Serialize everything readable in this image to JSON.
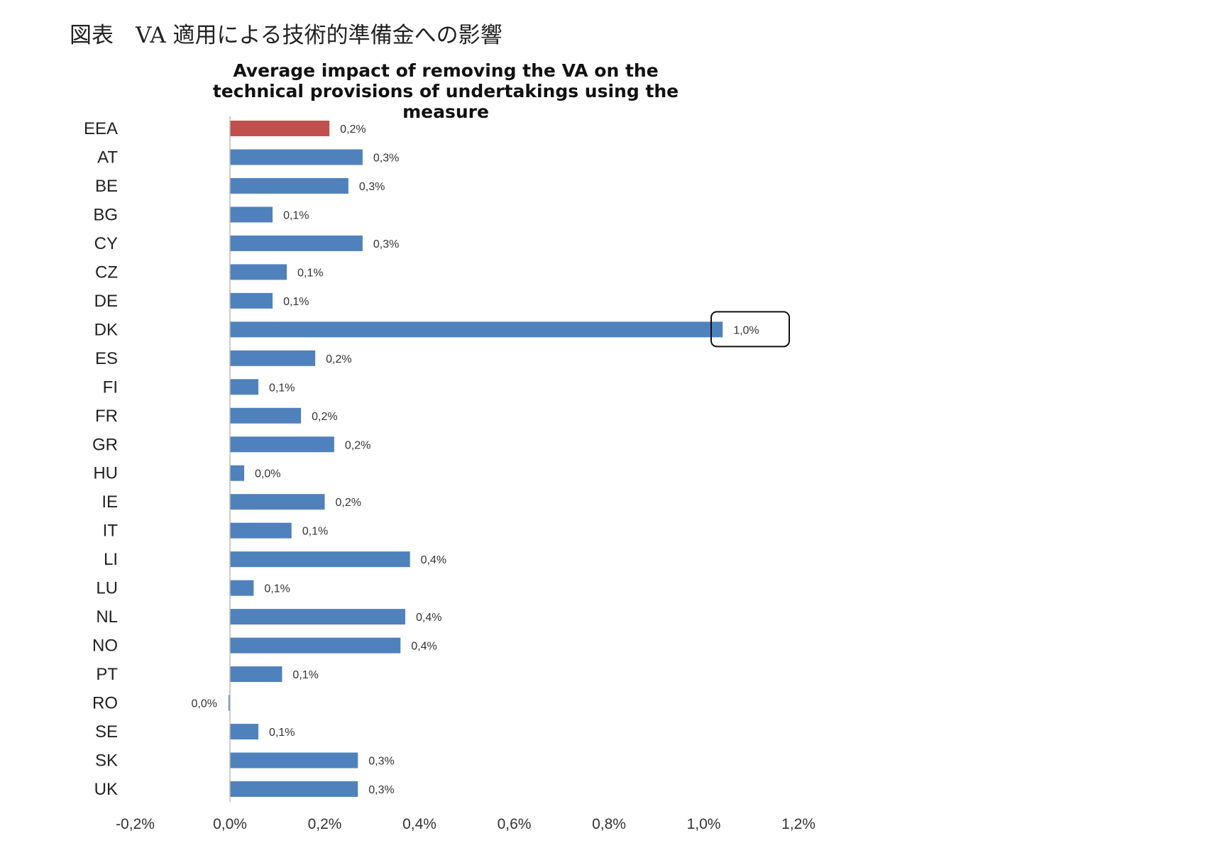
{
  "heading": "図表　VA 適用による技術的準備金への影響",
  "chart_data": {
    "type": "bar",
    "orientation": "horizontal",
    "title_lines": [
      "Average impact of removing the VA on the",
      "technical provisions of undertakings using the",
      "measure"
    ],
    "categories": [
      "EEA",
      "AT",
      "BE",
      "BG",
      "CY",
      "CZ",
      "DE",
      "DK",
      "ES",
      "FI",
      "FR",
      "GR",
      "HU",
      "IE",
      "IT",
      "LI",
      "LU",
      "NL",
      "NO",
      "PT",
      "RO",
      "SE",
      "SK",
      "UK"
    ],
    "values": [
      0.21,
      0.28,
      0.25,
      0.09,
      0.28,
      0.12,
      0.09,
      1.04,
      0.18,
      0.06,
      0.15,
      0.22,
      0.03,
      0.2,
      0.13,
      0.38,
      0.05,
      0.37,
      0.36,
      0.11,
      -0.003,
      0.06,
      0.27,
      0.27
    ],
    "data_labels": [
      "0,2%",
      "0,3%",
      "0,3%",
      "0,1%",
      "0,3%",
      "0,1%",
      "0,1%",
      "1,0%",
      "0,2%",
      "0,1%",
      "0,2%",
      "0,2%",
      "0,0%",
      "0,2%",
      "0,1%",
      "0,4%",
      "0,1%",
      "0,4%",
      "0,4%",
      "0,1%",
      "0,0%",
      "0,1%",
      "0,3%",
      "0,3%"
    ],
    "highlight_category": "EEA",
    "highlight_color": "#c0504d",
    "bar_color": "#4f81bd",
    "boxed_label": "DK",
    "xlim": [
      -0.2,
      1.2
    ],
    "xticks": [
      -0.2,
      0,
      0.2,
      0.4,
      0.6,
      0.8,
      1.0,
      1.2
    ],
    "xtick_labels": [
      "-0,2%",
      "0,0%",
      "0,2%",
      "0,4%",
      "0,6%",
      "0,8%",
      "1,0%",
      "1,2%"
    ],
    "unit": "%",
    "grid": false,
    "legend": "none"
  }
}
